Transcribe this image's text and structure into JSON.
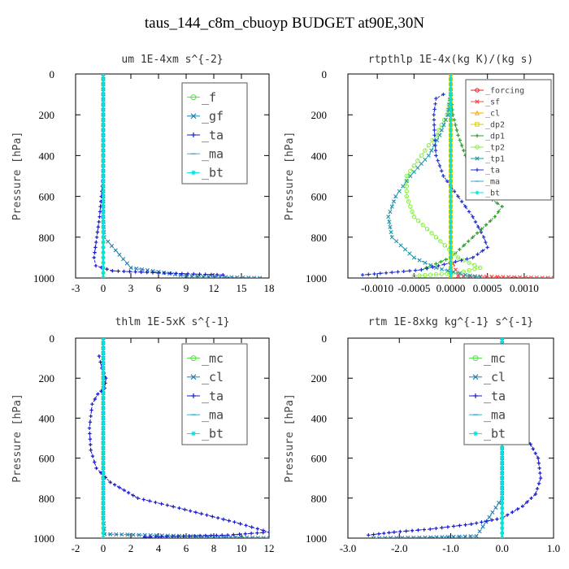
{
  "title": "taus_144_c8m_cbuoyp  BUDGET at90E,30N",
  "chart_data": [
    {
      "type": "line",
      "title": "um  1E-4xm s^{-2}",
      "ylabel": "Pressure [hPa]",
      "xlim": [
        -3,
        18
      ],
      "ylim": [
        1000,
        0
      ],
      "xticks": [
        "-3",
        "0",
        "3",
        "6",
        "9",
        "12",
        "15",
        "18"
      ],
      "xtick_values": [
        -3,
        0,
        3,
        6,
        9,
        12,
        15,
        18
      ],
      "yticks": [
        0,
        200,
        400,
        600,
        800,
        1000
      ],
      "legend": {
        "placement": "top-right",
        "font_size": 15
      },
      "series": [
        {
          "name": "_f",
          "color": "#55dd44",
          "marker": "circle",
          "x": [
            0,
            0,
            0,
            0,
            0,
            0,
            0,
            0,
            0,
            0,
            0
          ],
          "y": [
            0,
            100,
            200,
            300,
            400,
            500,
            600,
            700,
            800,
            900,
            1000
          ]
        },
        {
          "name": "_gf",
          "color": "#1e7fb0",
          "marker": "x",
          "x": [
            0,
            0,
            0,
            0,
            0,
            0,
            0,
            0,
            0.1,
            3,
            9,
            17
          ],
          "y": [
            0,
            100,
            200,
            300,
            400,
            500,
            600,
            700,
            800,
            950,
            990,
            1000
          ]
        },
        {
          "name": "_ta",
          "color": "#1a1acc",
          "marker": "plus",
          "x": [
            0,
            0,
            0,
            0,
            0,
            0,
            -0.2,
            -0.4,
            -0.7,
            -1.0,
            -0.8,
            1.0,
            6,
            13
          ],
          "y": [
            0,
            100,
            200,
            300,
            400,
            500,
            600,
            700,
            800,
            900,
            940,
            965,
            975,
            985
          ]
        },
        {
          "name": "_ma",
          "color": "#44aacc",
          "marker": "dash",
          "x": [
            0,
            0,
            0,
            0,
            0,
            0,
            0,
            0,
            0,
            0,
            0
          ],
          "y": [
            0,
            100,
            200,
            300,
            400,
            500,
            600,
            700,
            800,
            900,
            1000
          ]
        },
        {
          "name": "_bt",
          "color": "#00e5e5",
          "marker": "star",
          "x": [
            0,
            0,
            0,
            0,
            0,
            0,
            0,
            0,
            0,
            0,
            0
          ],
          "y": [
            0,
            100,
            200,
            300,
            400,
            500,
            600,
            700,
            800,
            900,
            1000
          ]
        }
      ]
    },
    {
      "type": "line",
      "title": "rtpthlp  1E-4x(kg K)/(kg s)",
      "ylabel": "Pressure [hPa]",
      "xlim": [
        -0.0014,
        0.0014
      ],
      "ylim": [
        1000,
        0
      ],
      "xticks": [
        "-0.0010",
        "-0.0005",
        "0.0000",
        "0.0005",
        "0.0010"
      ],
      "xtick_values": [
        -0.001,
        -0.0005,
        0,
        0.0005,
        0.001
      ],
      "yticks": [
        0,
        200,
        400,
        600,
        800,
        1000
      ],
      "legend": {
        "placement": "top-right",
        "font_size": 10
      },
      "series": [
        {
          "name": "_forcing",
          "color": "#dd2222",
          "marker": "circle",
          "x": [
            0,
            0,
            0,
            0,
            0,
            0,
            0,
            0,
            0,
            0,
            0
          ],
          "y": [
            0,
            100,
            200,
            300,
            400,
            500,
            600,
            700,
            800,
            900,
            1000
          ]
        },
        {
          "name": "_sf",
          "color": "#ff4444",
          "marker": "x",
          "x": [
            0,
            0,
            0,
            0,
            0,
            0,
            0,
            0,
            0,
            0,
            0.0001,
            0.0014
          ],
          "y": [
            0,
            100,
            200,
            300,
            400,
            500,
            600,
            700,
            800,
            900,
            990,
            1000
          ]
        },
        {
          "name": "_cl",
          "color": "#ffaa00",
          "marker": "triangle",
          "x": [
            0,
            0,
            0,
            0,
            0,
            0,
            0,
            0,
            0,
            0,
            0
          ],
          "y": [
            0,
            100,
            200,
            300,
            400,
            500,
            600,
            700,
            800,
            900,
            1000
          ]
        },
        {
          "name": "_dp2",
          "color": "#ddcc00",
          "marker": "square",
          "x": [
            0,
            0,
            0,
            0,
            0,
            0,
            0,
            0,
            0,
            0,
            0
          ],
          "y": [
            0,
            100,
            200,
            300,
            400,
            500,
            600,
            700,
            800,
            900,
            1000
          ]
        },
        {
          "name": "_dp1",
          "color": "#2e9e2e",
          "marker": "plus",
          "x": [
            0,
            0,
            3e-05,
            0.0001,
            0.0002,
            0.00035,
            0.0005,
            0.0007,
            0.0006,
            0.0003,
            0,
            -0.0004
          ],
          "y": [
            80,
            100,
            200,
            300,
            400,
            500,
            600,
            650,
            700,
            800,
            900,
            960
          ]
        },
        {
          "name": "_tp2",
          "color": "#88ee44",
          "marker": "circle",
          "x": [
            0,
            -5e-05,
            -0.0002,
            -0.0004,
            -0.0006,
            -0.0006,
            -0.0005,
            -0.0002,
            0.0001,
            0.0004,
            0.0001,
            -0.0005
          ],
          "y": [
            100,
            200,
            300,
            400,
            500,
            600,
            700,
            800,
            900,
            950,
            975,
            990
          ]
        },
        {
          "name": "_tp1",
          "color": "#2299aa",
          "marker": "x",
          "x": [
            0,
            -4e-05,
            -0.00015,
            -0.0003,
            -0.00055,
            -0.00075,
            -0.00085,
            -0.0008,
            -0.0005,
            -0.0002,
            0.0002,
            0.0004
          ],
          "y": [
            100,
            200,
            300,
            400,
            500,
            600,
            700,
            800,
            900,
            950,
            985,
            995
          ]
        },
        {
          "name": "_ta",
          "color": "#2233cc",
          "marker": "plus",
          "x": [
            -0.0001,
            -0.0002,
            -0.00023,
            -0.00022,
            -0.0002,
            -0.0001,
            0.0001,
            0.0003,
            0.00045,
            0.0005,
            0.0003,
            -0.0004,
            -0.0012
          ],
          "y": [
            100,
            120,
            200,
            300,
            400,
            500,
            600,
            700,
            800,
            850,
            900,
            960,
            985
          ]
        },
        {
          "name": "_ma",
          "color": "#44aacc",
          "marker": "dash",
          "x": [
            0,
            0,
            0,
            0,
            0,
            0,
            0,
            0,
            0,
            0,
            0
          ],
          "y": [
            0,
            100,
            200,
            300,
            400,
            500,
            600,
            700,
            800,
            900,
            1000
          ]
        },
        {
          "name": "_bt",
          "color": "#00e5e5",
          "marker": "star",
          "x": [
            0,
            0,
            0,
            0,
            0,
            0,
            0,
            0,
            0,
            0,
            0
          ],
          "y": [
            0,
            100,
            200,
            300,
            400,
            500,
            600,
            700,
            800,
            900,
            1000
          ]
        }
      ]
    },
    {
      "type": "line",
      "title": "thlm  1E-5xK s^{-1}",
      "ylabel": "Pressure [hPa]",
      "xlim": [
        -2,
        12
      ],
      "ylim": [
        1000,
        0
      ],
      "xticks": [
        "-2",
        "0",
        "2",
        "4",
        "6",
        "8",
        "10",
        "12"
      ],
      "xtick_values": [
        -2,
        0,
        2,
        4,
        6,
        8,
        10,
        12
      ],
      "yticks": [
        0,
        200,
        400,
        600,
        800,
        1000
      ],
      "legend": {
        "placement": "top-right",
        "font_size": 15
      },
      "series": [
        {
          "name": "_mc",
          "color": "#55dd44",
          "marker": "circle",
          "x": [
            0,
            0,
            0,
            0,
            0,
            0,
            0,
            0,
            0,
            0,
            0
          ],
          "y": [
            0,
            100,
            200,
            300,
            400,
            500,
            600,
            700,
            800,
            900,
            1000
          ]
        },
        {
          "name": "_cl",
          "color": "#1e7fb0",
          "marker": "x",
          "x": [
            0,
            0,
            0,
            0,
            0,
            0,
            0,
            0,
            0,
            0,
            0.1,
            8,
            12
          ],
          "y": [
            0,
            100,
            200,
            300,
            400,
            500,
            600,
            700,
            800,
            900,
            980,
            993,
            1000
          ]
        },
        {
          "name": "_ta",
          "color": "#1a1acc",
          "marker": "plus",
          "x": [
            -0.3,
            -0.1,
            0.2,
            0.1,
            -0.4,
            -0.8,
            -1.0,
            -0.9,
            -0.5,
            0.5,
            2.5,
            5.5,
            9.5,
            12,
            9,
            3
          ],
          "y": [
            90,
            150,
            200,
            250,
            280,
            330,
            450,
            560,
            650,
            720,
            800,
            850,
            920,
            970,
            985,
            995
          ]
        },
        {
          "name": "_ma",
          "color": "#44aacc",
          "marker": "dash",
          "x": [
            0,
            0,
            0,
            0,
            0,
            0,
            0,
            0,
            0,
            0,
            0
          ],
          "y": [
            0,
            100,
            200,
            300,
            400,
            500,
            600,
            700,
            800,
            900,
            1000
          ]
        },
        {
          "name": "_bt",
          "color": "#00e5e5",
          "marker": "star",
          "x": [
            0,
            0,
            0,
            0,
            0,
            0,
            0,
            0,
            0,
            0,
            0
          ],
          "y": [
            0,
            100,
            200,
            300,
            400,
            500,
            600,
            700,
            800,
            900,
            1000
          ]
        }
      ]
    },
    {
      "type": "line",
      "title": "rtm  1E-8xkg kg^{-1} s^{-1}",
      "ylabel": "Pressure [hPa]",
      "xlim": [
        -3.0,
        1.0
      ],
      "ylim": [
        1000,
        0
      ],
      "xticks": [
        "-3.0",
        "-2.0",
        "-1.0",
        "0.0",
        "1.0"
      ],
      "xtick_values": [
        -3.0,
        -2.0,
        -1.0,
        0.0,
        1.0
      ],
      "yticks": [
        0,
        200,
        400,
        600,
        800,
        1000
      ],
      "legend": {
        "placement": "top-right",
        "font_size": 15
      },
      "series": [
        {
          "name": "_mc",
          "color": "#55dd44",
          "marker": "circle",
          "x": [
            0,
            0,
            0,
            0,
            0,
            0,
            0,
            0,
            0,
            0,
            0
          ],
          "y": [
            0,
            100,
            200,
            300,
            400,
            500,
            600,
            700,
            800,
            900,
            1000
          ]
        },
        {
          "name": "_cl",
          "color": "#1e7fb0",
          "marker": "x",
          "x": [
            0,
            0,
            0,
            0,
            0,
            0,
            0,
            0,
            0,
            -0.5,
            -1.5,
            -2.5
          ],
          "y": [
            0,
            100,
            200,
            300,
            400,
            500,
            600,
            700,
            800,
            990,
            997,
            1000
          ]
        },
        {
          "name": "_ta",
          "color": "#1a1acc",
          "marker": "plus",
          "x": [
            0,
            0.03,
            0.1,
            0.2,
            0.35,
            0.55,
            0.7,
            0.75,
            0.65,
            0.4,
            0,
            -0.6,
            -1.4,
            -2.1,
            -2.6
          ],
          "y": [
            100,
            200,
            300,
            400,
            450,
            530,
            600,
            700,
            780,
            840,
            900,
            930,
            955,
            970,
            985
          ]
        },
        {
          "name": "_ma",
          "color": "#44aacc",
          "marker": "dash",
          "x": [
            0,
            0,
            0,
            0,
            0,
            0,
            0,
            0,
            0,
            0,
            0
          ],
          "y": [
            0,
            100,
            200,
            300,
            400,
            500,
            600,
            700,
            800,
            900,
            1000
          ]
        },
        {
          "name": "_bt",
          "color": "#00e5e5",
          "marker": "star",
          "x": [
            0,
            0,
            0,
            0,
            0,
            0,
            0,
            0,
            0,
            0,
            0
          ],
          "y": [
            0,
            100,
            200,
            300,
            400,
            500,
            600,
            700,
            800,
            900,
            1000
          ]
        }
      ]
    }
  ]
}
